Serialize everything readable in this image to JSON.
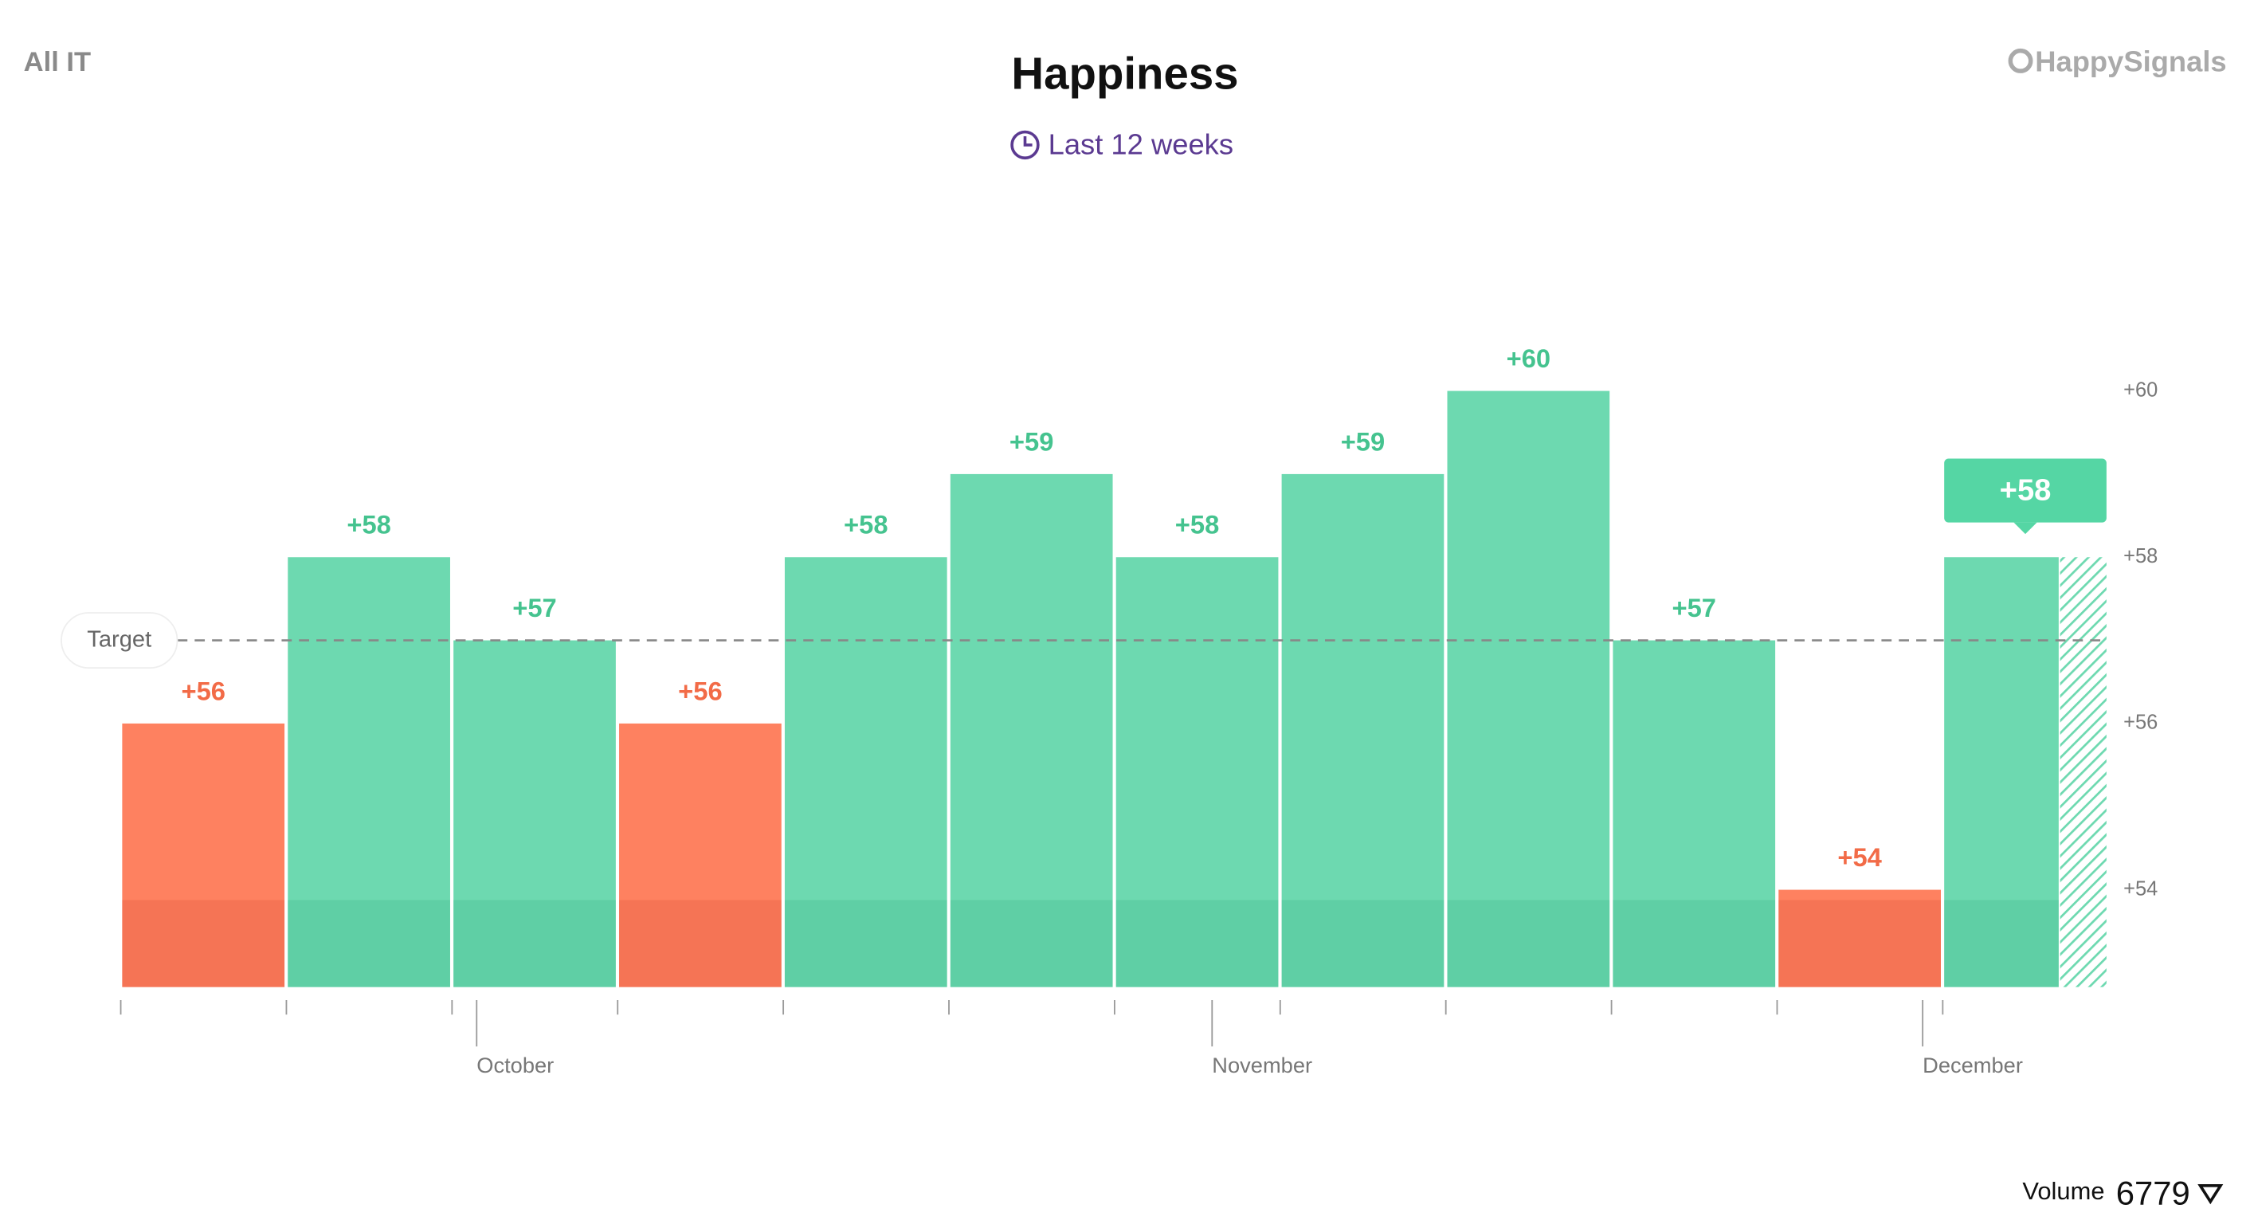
{
  "header": {
    "scope": "All IT",
    "brand": "HappySignals"
  },
  "chart_data": {
    "type": "bar",
    "title": "Happiness",
    "subtitle": "Last 12 weeks",
    "categories": [
      null,
      null,
      null,
      null,
      null,
      null,
      null,
      null,
      null,
      null,
      null,
      null
    ],
    "values": [
      56,
      58,
      57,
      56,
      58,
      59,
      58,
      59,
      60,
      57,
      54,
      58
    ],
    "value_labels": [
      "+56",
      "+58",
      "+57",
      "+56",
      "+58",
      "+59",
      "+58",
      "+59",
      "+60",
      "+57",
      "+54",
      "+58"
    ],
    "months": [
      "October",
      "November",
      "December"
    ],
    "target": 57,
    "target_label": "Target",
    "above_color": "#6dd9b0",
    "below_color": "#fe8160",
    "ylim": [
      52.83,
      62
    ],
    "yticks": [
      {
        "value": 54,
        "label": "+54"
      },
      {
        "value": 56,
        "label": "+56"
      },
      {
        "value": 58,
        "label": "+58"
      },
      {
        "value": 60,
        "label": "+60"
      }
    ],
    "grid": false,
    "volume_label": "Volume",
    "volume": 6779
  }
}
